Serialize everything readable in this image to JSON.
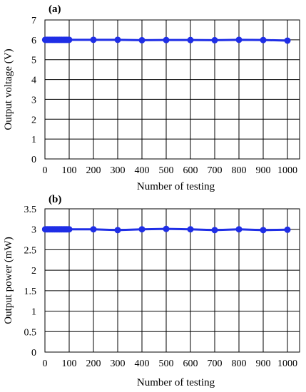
{
  "chart_data": [
    {
      "type": "line",
      "panel_label": "(a)",
      "xlabel": "Number of testing",
      "ylabel": "Output voltage (V)",
      "xlim": [
        0,
        1050
      ],
      "ylim": [
        0,
        7
      ],
      "xticks": [
        0,
        100,
        200,
        300,
        400,
        500,
        600,
        700,
        800,
        900,
        1000
      ],
      "yticks": [
        0,
        1,
        2,
        3,
        4,
        5,
        6,
        7
      ],
      "grid": true,
      "color": "#1f2ee6",
      "series": [
        {
          "x": [
            1,
            5,
            10,
            15,
            20,
            25,
            30,
            35,
            40,
            45,
            50,
            55,
            60,
            65,
            70,
            75,
            80,
            85,
            90,
            95,
            100,
            200,
            300,
            400,
            500,
            600,
            700,
            800,
            900,
            1000
          ],
          "y": [
            6,
            6,
            6,
            6,
            6,
            6,
            6,
            6,
            6,
            6,
            6,
            6,
            6,
            6,
            6,
            6,
            6,
            6,
            6,
            6,
            6,
            6,
            6,
            5.98,
            5.99,
            5.99,
            5.98,
            6,
            5.99,
            5.96
          ]
        }
      ]
    },
    {
      "type": "line",
      "panel_label": "(b)",
      "xlabel": "Number of testing",
      "ylabel": "Output power (mW)",
      "xlim": [
        0,
        1050
      ],
      "ylim": [
        0,
        3.5
      ],
      "xticks": [
        0,
        100,
        200,
        300,
        400,
        500,
        600,
        700,
        800,
        900,
        1000
      ],
      "yticks": [
        0,
        0.5,
        1,
        1.5,
        2,
        2.5,
        3,
        3.5
      ],
      "grid": true,
      "color": "#1f2ee6",
      "series": [
        {
          "x": [
            1,
            5,
            10,
            15,
            20,
            25,
            30,
            35,
            40,
            45,
            50,
            55,
            60,
            65,
            70,
            75,
            80,
            85,
            90,
            95,
            100,
            200,
            300,
            400,
            500,
            600,
            700,
            800,
            900,
            1000
          ],
          "y": [
            3,
            3,
            3,
            3,
            3,
            3,
            3,
            3,
            3,
            3,
            3,
            3,
            3,
            3,
            3,
            3,
            3,
            3,
            3,
            3,
            3,
            3,
            2.98,
            3,
            3.01,
            3,
            2.98,
            3,
            2.98,
            2.99
          ]
        }
      ]
    }
  ]
}
